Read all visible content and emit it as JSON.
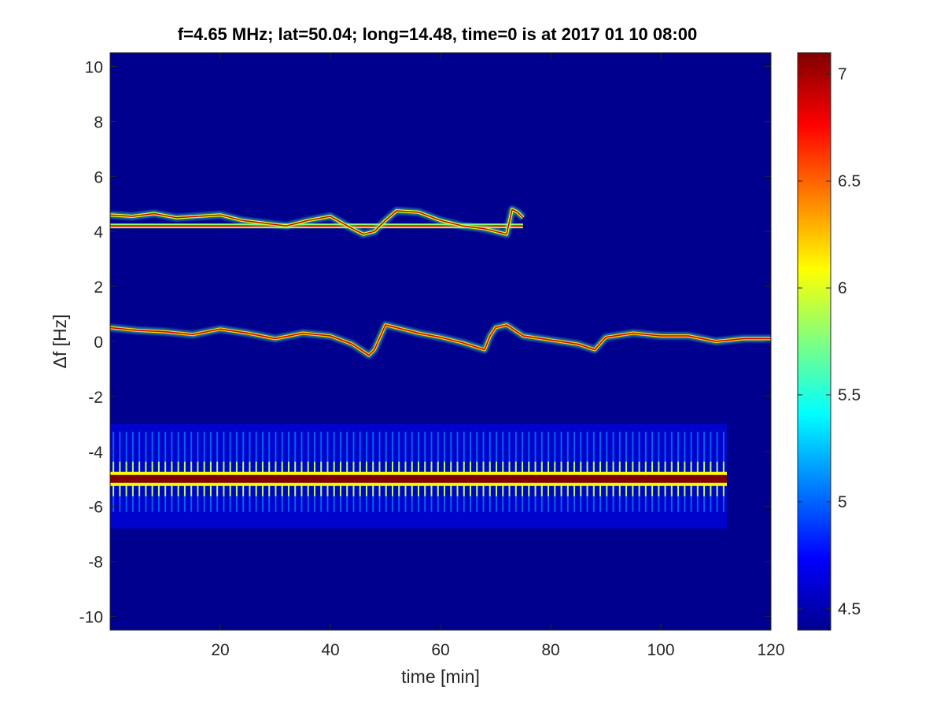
{
  "chart_data": {
    "type": "heatmap",
    "title": "f=4.65 MHz;  lat=50.04; long=14.48, time=0 is at 2017 01 10 08:00",
    "xlabel": "time [min]",
    "ylabel": "Δf [Hz]",
    "xlim": [
      0,
      120
    ],
    "ylim": [
      -10.5,
      10.5
    ],
    "x_ticks": [
      20,
      40,
      60,
      80,
      100,
      120
    ],
    "y_ticks": [
      10,
      8,
      6,
      4,
      2,
      0,
      -2,
      -4,
      -6,
      -8,
      -10
    ],
    "colorbar": {
      "min": 4.4,
      "max": 7.1,
      "ticks": [
        7,
        6.5,
        6,
        5.5,
        5,
        4.5
      ],
      "colormap": "jet"
    },
    "background_color": "#00008F",
    "grid": false,
    "features": [
      {
        "name": "constant carrier line",
        "x_range": [
          0,
          75
        ],
        "delta_f": 4.2,
        "intensity": 6.8
      },
      {
        "name": "upper wandering trace",
        "x": [
          0,
          4,
          8,
          12,
          16,
          20,
          24,
          28,
          32,
          36,
          40,
          44,
          46,
          48,
          50,
          52,
          56,
          60,
          64,
          68,
          70,
          72,
          73,
          74,
          75
        ],
        "y": [
          4.6,
          4.55,
          4.65,
          4.5,
          4.55,
          4.6,
          4.4,
          4.3,
          4.2,
          4.4,
          4.55,
          4.1,
          3.9,
          4.0,
          4.4,
          4.75,
          4.7,
          4.4,
          4.2,
          4.1,
          4.0,
          3.9,
          4.8,
          4.7,
          4.5
        ],
        "intensity": 6.0
      },
      {
        "name": "lower wandering trace",
        "x": [
          0,
          5,
          10,
          15,
          20,
          25,
          30,
          35,
          40,
          44,
          47,
          48,
          50,
          52,
          56,
          60,
          64,
          68,
          69,
          70,
          72,
          75,
          80,
          85,
          88,
          90,
          95,
          100,
          105,
          110,
          115,
          120
        ],
        "y": [
          0.5,
          0.4,
          0.35,
          0.25,
          0.45,
          0.3,
          0.1,
          0.3,
          0.2,
          -0.1,
          -0.5,
          -0.3,
          0.6,
          0.5,
          0.3,
          0.15,
          -0.05,
          -0.3,
          0.2,
          0.5,
          0.6,
          0.2,
          0.05,
          -0.1,
          -0.3,
          0.15,
          0.3,
          0.2,
          0.2,
          0.0,
          0.1,
          0.1
        ],
        "intensity": 6.2
      },
      {
        "name": "strong pulsed carrier",
        "x_range": [
          0,
          112
        ],
        "delta_f": -5.0,
        "intensity": 7.1,
        "spread": [
          -6.8,
          -3.0
        ]
      }
    ]
  }
}
